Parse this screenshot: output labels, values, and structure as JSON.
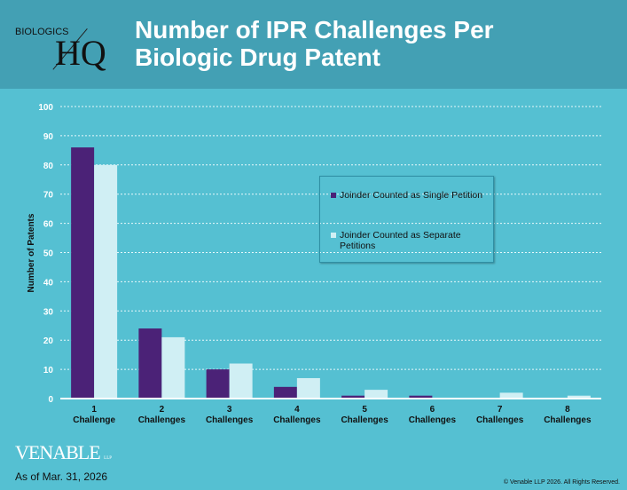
{
  "header": {
    "logo_top": "BIOLOGICS",
    "logo_bottom": "HQ"
  },
  "footer": {
    "brand": "VENABLE",
    "brand_suffix": "LLP",
    "as_of": "As of Mar. 31, 2026",
    "copyright": "© Venable LLP 2026. All Rights Reserved."
  },
  "colors": {
    "series1": "#4b2277",
    "series2": "#d0eff4",
    "background": "#55c0d2",
    "header": "#43a0b4"
  },
  "chart_data": {
    "type": "bar",
    "title": "Number of IPR Challenges Per Biologic Drug Patent",
    "ylabel": "Number of Patents",
    "xlabel": "",
    "ylim": [
      0,
      100
    ],
    "yticks": [
      "0",
      "10",
      "20",
      "30",
      "40",
      "50",
      "60",
      "70",
      "80",
      "90",
      "100"
    ],
    "grid": true,
    "legend_placement": "right",
    "categories": [
      [
        "1",
        "Challenge"
      ],
      [
        "2",
        "Challenges"
      ],
      [
        "3",
        "Challenges"
      ],
      [
        "4",
        "Challenges"
      ],
      [
        "5",
        "Challenges"
      ],
      [
        "6",
        "Challenges"
      ],
      [
        "7",
        "Challenges"
      ],
      [
        "8",
        "Challenges"
      ]
    ],
    "series": [
      {
        "name": "Joinder Counted as Single Petition",
        "values": [
          86,
          24,
          10,
          4,
          1,
          1,
          0,
          0
        ]
      },
      {
        "name": "Joinder Counted as Separate Petitions",
        "values": [
          80,
          21,
          12,
          7,
          3,
          0,
          2,
          1
        ]
      }
    ]
  }
}
